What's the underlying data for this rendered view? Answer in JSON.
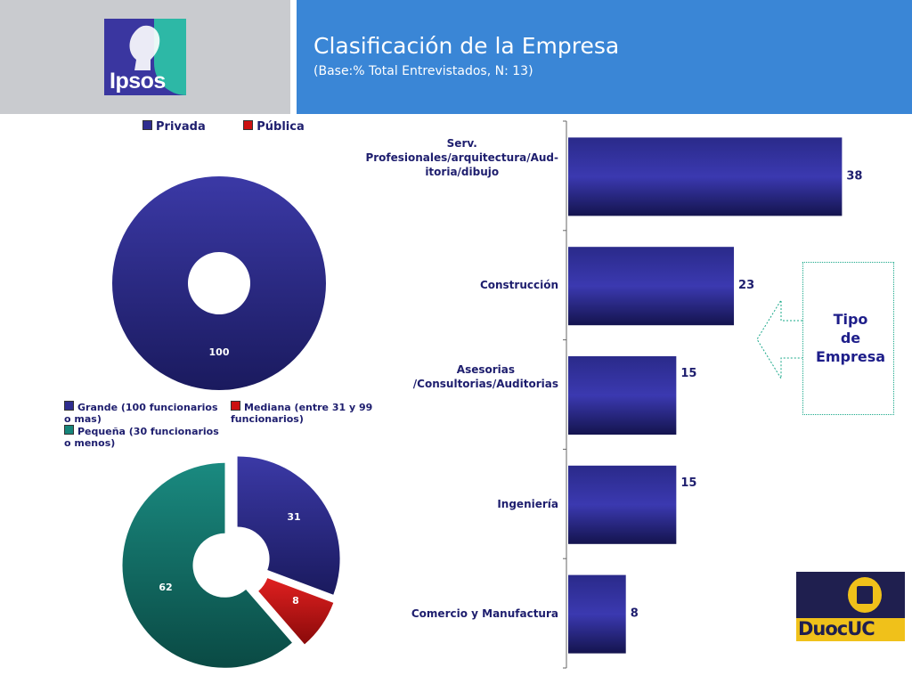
{
  "header": {
    "brand": "Ipsos",
    "title": "Clasificación de la Empresa",
    "subtitle": "(Base:% Total Entrevistados, N: 13)"
  },
  "colors": {
    "navy": "#2f2d8f",
    "red": "#cc1111",
    "teal": "#16857a",
    "header_blue": "#3a86d6",
    "header_gray": "#c9cbcf"
  },
  "chart_data": [
    {
      "type": "pie",
      "subtype": "donut",
      "legend_position": "top",
      "series": [
        {
          "name": "Privada",
          "value": 100,
          "color": "#2f2d8f"
        },
        {
          "name": "Pública",
          "value": 0,
          "color": "#cc1111"
        }
      ],
      "data_labels": [
        "100"
      ]
    },
    {
      "type": "pie",
      "subtype": "donut",
      "legend_position": "top",
      "series": [
        {
          "name": "Grande (100 funcionarios o mas)",
          "value": 31,
          "color": "#2f2d8f"
        },
        {
          "name": "Mediana (entre 31 y 99 funcionarios)",
          "value": 8,
          "color": "#cc1111"
        },
        {
          "name": "Pequeña (30 funcionarios o menos)",
          "value": 62,
          "color": "#16857a"
        }
      ],
      "data_labels": [
        "31",
        "8",
        "62"
      ]
    },
    {
      "type": "bar",
      "orientation": "horizontal",
      "categories": [
        "Serv. Profesionales/arquitectura/Aud-itoria/dibujo",
        "Construcción",
        "Asesorias /Consultorias/Auditorias",
        "Ingeniería",
        "Comercio y Manufactura"
      ],
      "category_lines": [
        [
          "Serv.",
          "Profesionales/arquitectura/Aud-",
          "itoria/dibujo"
        ],
        [
          "Construcción"
        ],
        [
          "Asesorias",
          "/Consultorias/Auditorias"
        ],
        [
          "Ingeniería"
        ],
        [
          "Comercio y Manufactura"
        ]
      ],
      "values": [
        38,
        23,
        15,
        15,
        8
      ],
      "data_labels": [
        "38",
        "23",
        "15",
        "15",
        "8"
      ],
      "xlim": [
        0,
        45
      ],
      "grid": false
    }
  ],
  "callout": {
    "lines": [
      "Tipo",
      "de",
      "Empresa"
    ]
  },
  "footer_logo": {
    "text": "DuocUC"
  }
}
